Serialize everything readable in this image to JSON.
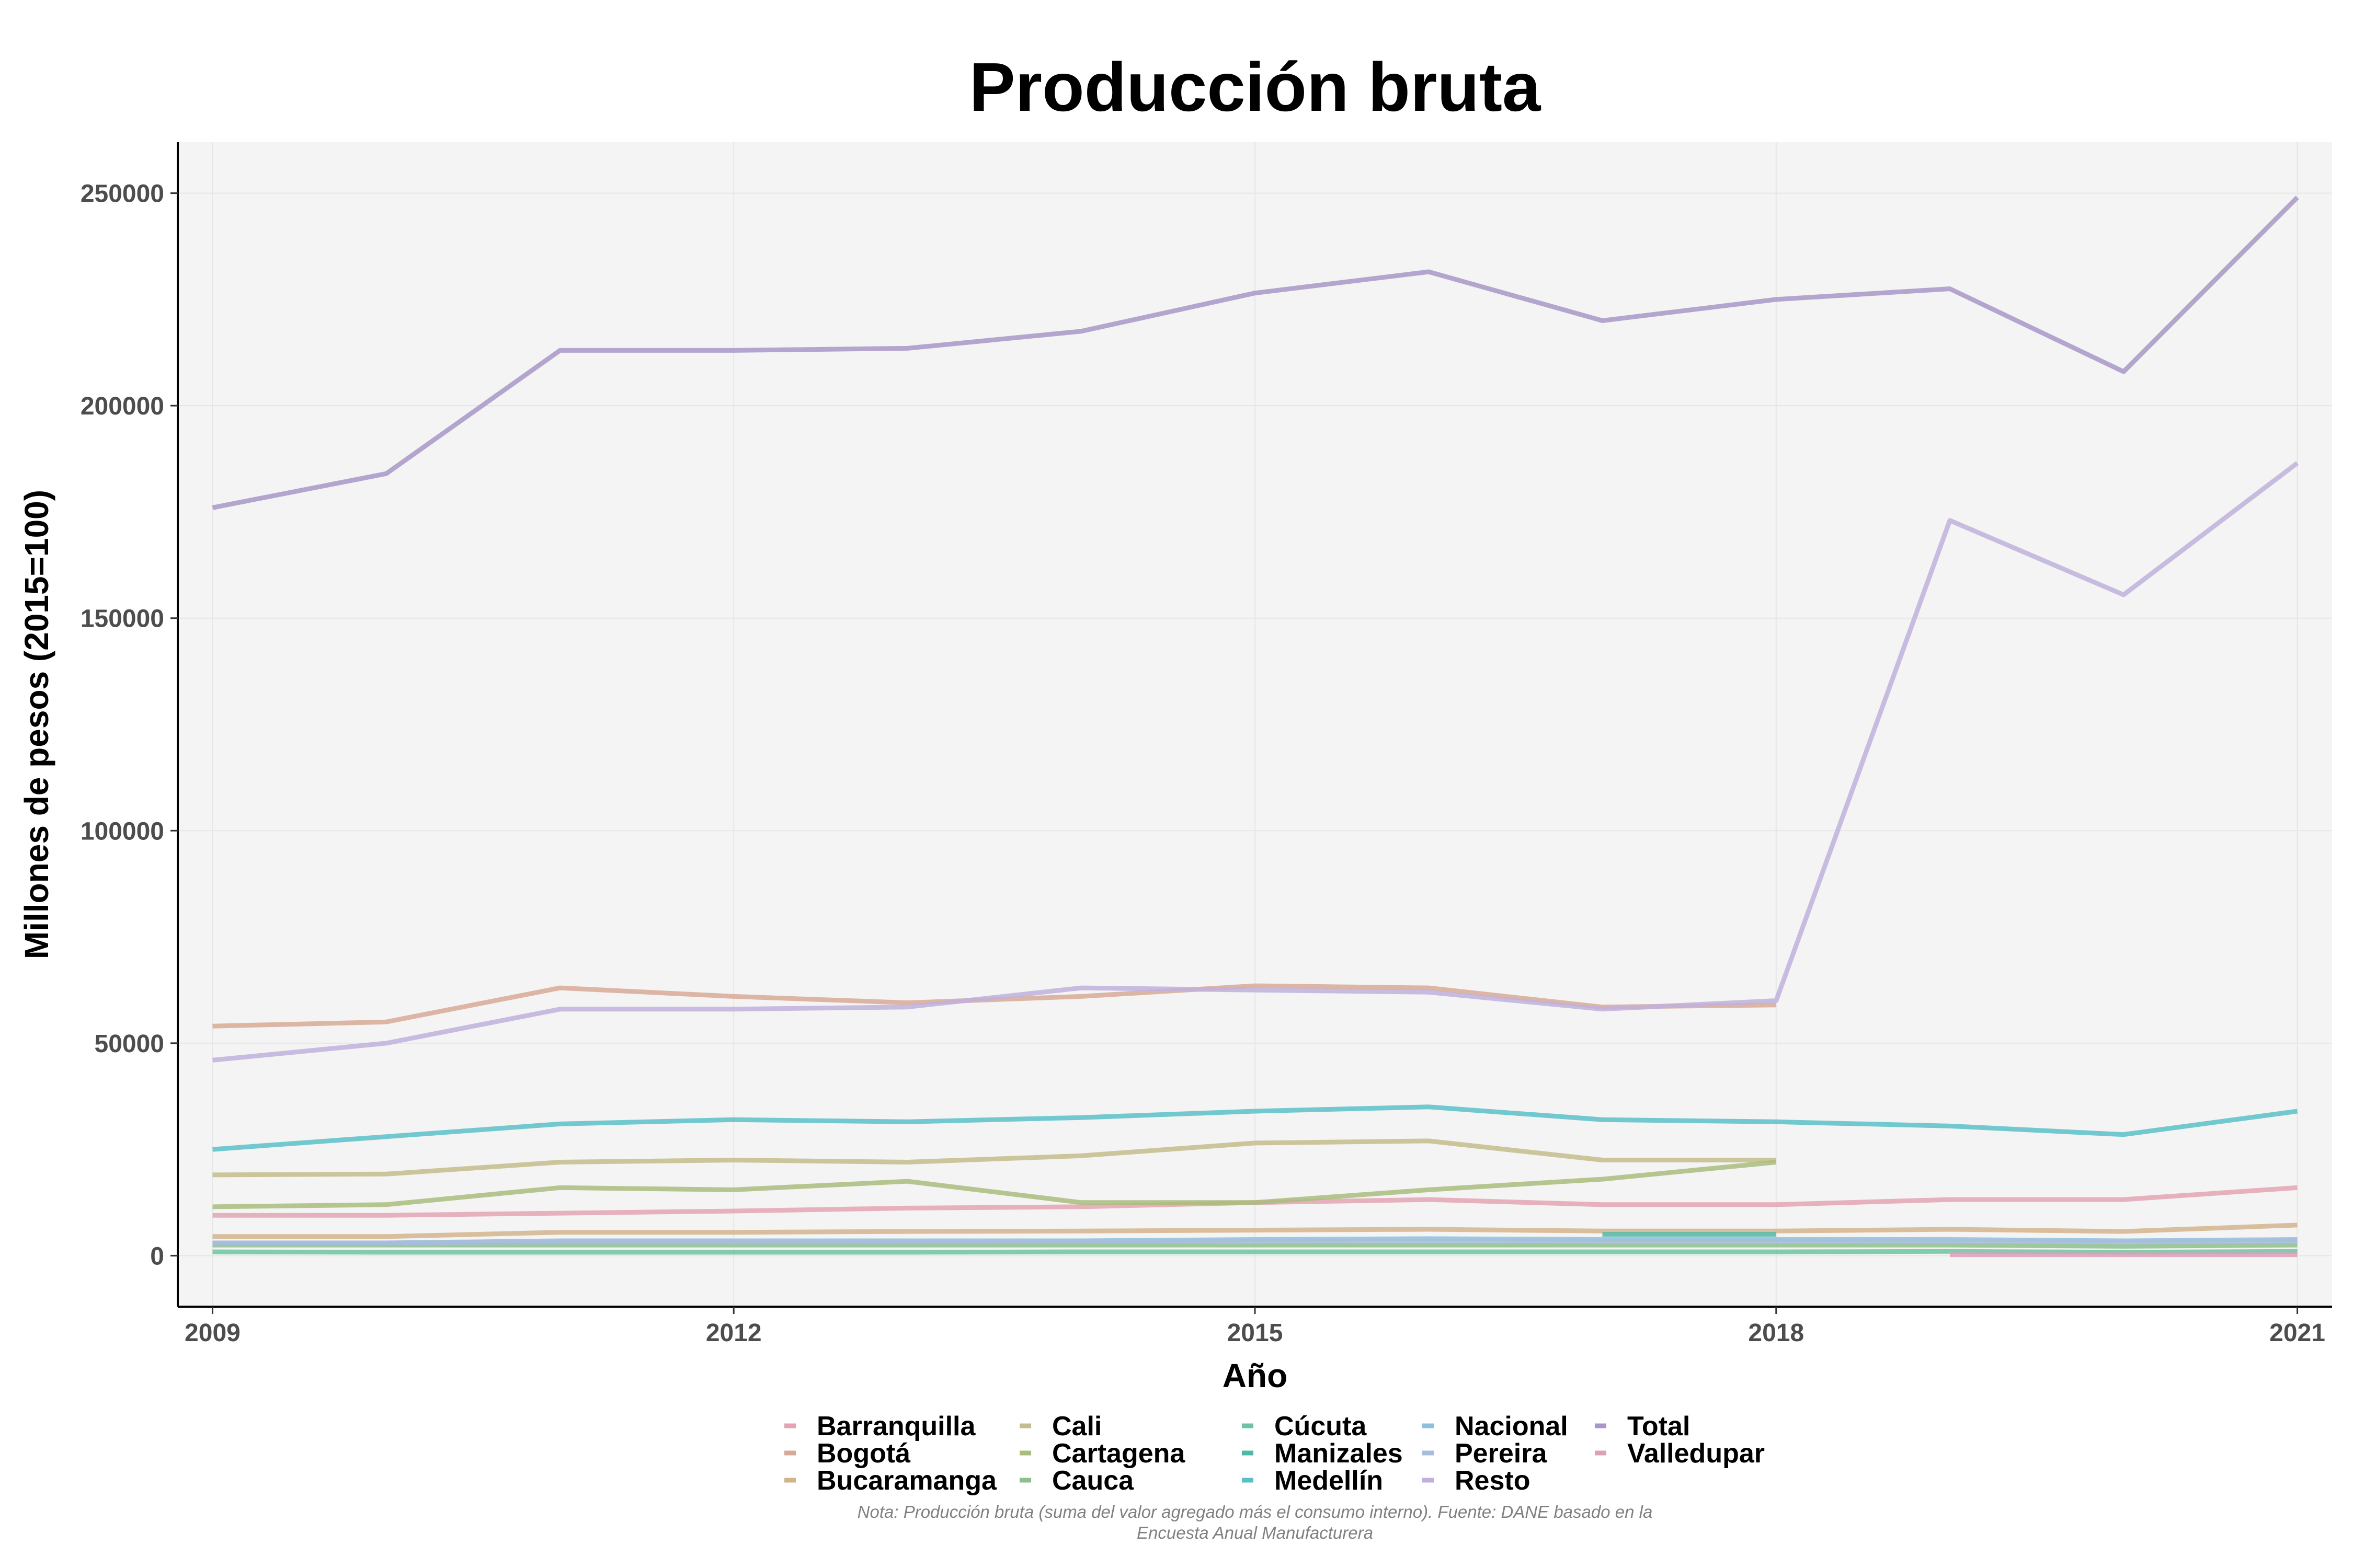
{
  "chart_data": {
    "type": "line",
    "title": "Producción bruta",
    "xlabel": "Año",
    "ylabel": "Millones de pesos (2015=100)",
    "xlim": [
      2008.8,
      2021.2
    ],
    "ylim": [
      -12000,
      262000
    ],
    "x_ticks": [
      2009,
      2012,
      2015,
      2018,
      2021
    ],
    "y_ticks": [
      0,
      50000,
      100000,
      150000,
      200000,
      250000
    ],
    "grid": true,
    "legend_position": "bottom",
    "note_lines": [
      "Nota: Producción bruta (suma del valor agregado más el consumo interno). Fuente: DANE basado en la",
      "Encuesta Anual Manufacturera"
    ],
    "series": [
      {
        "name": "Barranquilla",
        "color": "#e3a3b3",
        "points": [
          [
            2009,
            9500
          ],
          [
            2010,
            9500
          ],
          [
            2011,
            10000
          ],
          [
            2012,
            10500
          ],
          [
            2013,
            11200
          ],
          [
            2014,
            11500
          ],
          [
            2015,
            12500
          ],
          [
            2016,
            13200
          ],
          [
            2017,
            12000
          ],
          [
            2018,
            12000
          ],
          [
            2019,
            13200
          ],
          [
            2020,
            13200
          ],
          [
            2021,
            16000
          ]
        ]
      },
      {
        "name": "Bogotá",
        "color": "#d8a996",
        "points": [
          [
            2009,
            54000
          ],
          [
            2010,
            55000
          ],
          [
            2011,
            63000
          ],
          [
            2012,
            61000
          ],
          [
            2013,
            59500
          ],
          [
            2014,
            61000
          ],
          [
            2015,
            63500
          ],
          [
            2016,
            63000
          ],
          [
            2017,
            58500
          ],
          [
            2018,
            59000
          ]
        ]
      },
      {
        "name": "Bucaramanga",
        "color": "#d2b48c",
        "points": [
          [
            2009,
            4500
          ],
          [
            2010,
            4500
          ],
          [
            2011,
            5500
          ],
          [
            2012,
            5500
          ],
          [
            2013,
            5700
          ],
          [
            2014,
            5800
          ],
          [
            2015,
            6000
          ],
          [
            2016,
            6200
          ],
          [
            2017,
            5800
          ],
          [
            2018,
            5800
          ],
          [
            2019,
            6200
          ],
          [
            2020,
            5700
          ],
          [
            2021,
            7200
          ]
        ]
      },
      {
        "name": "Cali",
        "color": "#c3bc8c",
        "points": [
          [
            2009,
            19000
          ],
          [
            2010,
            19200
          ],
          [
            2011,
            22000
          ],
          [
            2012,
            22500
          ],
          [
            2013,
            22000
          ],
          [
            2014,
            23500
          ],
          [
            2015,
            26500
          ],
          [
            2016,
            27000
          ],
          [
            2017,
            22500
          ],
          [
            2018,
            22500
          ]
        ]
      },
      {
        "name": "Cartagena",
        "color": "#a9bc7c",
        "points": [
          [
            2009,
            11500
          ],
          [
            2010,
            12000
          ],
          [
            2011,
            16000
          ],
          [
            2012,
            15500
          ],
          [
            2013,
            17500
          ],
          [
            2014,
            12500
          ],
          [
            2015,
            12500
          ],
          [
            2016,
            15500
          ],
          [
            2017,
            18000
          ],
          [
            2018,
            22000
          ]
        ]
      },
      {
        "name": "Cauca",
        "color": "#8cbf8c",
        "points": [
          [
            2009,
            2500
          ],
          [
            2010,
            2500
          ],
          [
            2011,
            2500
          ],
          [
            2012,
            2500
          ],
          [
            2013,
            2500
          ],
          [
            2014,
            2500
          ],
          [
            2015,
            2500
          ],
          [
            2016,
            2500
          ],
          [
            2017,
            2500
          ],
          [
            2018,
            2500
          ],
          [
            2019,
            2500
          ],
          [
            2020,
            2200
          ],
          [
            2021,
            2500
          ]
        ]
      },
      {
        "name": "Cúcuta",
        "color": "#6cc4a0",
        "points": [
          [
            2009,
            900
          ],
          [
            2010,
            800
          ],
          [
            2011,
            800
          ],
          [
            2012,
            800
          ],
          [
            2013,
            800
          ],
          [
            2014,
            900
          ],
          [
            2015,
            900
          ],
          [
            2016,
            900
          ],
          [
            2017,
            900
          ],
          [
            2018,
            900
          ],
          [
            2019,
            1000
          ],
          [
            2020,
            800
          ],
          [
            2021,
            1000
          ]
        ]
      },
      {
        "name": "Manizales",
        "color": "#4fb8a8",
        "points": [
          [
            2017,
            5000
          ],
          [
            2018,
            5000
          ]
        ]
      },
      {
        "name": "Medellín",
        "color": "#5bbfc8",
        "points": [
          [
            2009,
            25000
          ],
          [
            2010,
            28000
          ],
          [
            2011,
            31000
          ],
          [
            2012,
            32000
          ],
          [
            2013,
            31500
          ],
          [
            2014,
            32500
          ],
          [
            2015,
            34000
          ],
          [
            2016,
            35000
          ],
          [
            2017,
            32000
          ],
          [
            2018,
            31500
          ],
          [
            2019,
            30500
          ],
          [
            2020,
            28500
          ],
          [
            2021,
            34000
          ]
        ]
      },
      {
        "name": "Nacional",
        "color": "#8ec0dc",
        "points": [
          [
            2009,
            3000
          ],
          [
            2010,
            3000
          ],
          [
            2011,
            3500
          ],
          [
            2012,
            3500
          ],
          [
            2013,
            3500
          ],
          [
            2014,
            3500
          ],
          [
            2015,
            3800
          ],
          [
            2016,
            4000
          ],
          [
            2017,
            3800
          ],
          [
            2018,
            3800
          ],
          [
            2019,
            3800
          ],
          [
            2020,
            3500
          ],
          [
            2021,
            3800
          ]
        ]
      },
      {
        "name": "Pereira",
        "color": "#a8bcdc",
        "points": [
          [
            2009,
            3000
          ],
          [
            2010,
            3000
          ],
          [
            2011,
            3200
          ],
          [
            2012,
            3200
          ],
          [
            2013,
            3200
          ],
          [
            2014,
            3300
          ],
          [
            2015,
            3300
          ],
          [
            2016,
            3400
          ],
          [
            2017,
            3300
          ],
          [
            2018,
            3300
          ],
          [
            2019,
            3400
          ],
          [
            2020,
            3200
          ],
          [
            2021,
            3500
          ]
        ]
      },
      {
        "name": "Resto",
        "color": "#c0b0dc",
        "points": [
          [
            2009,
            46000
          ],
          [
            2010,
            50000
          ],
          [
            2011,
            58000
          ],
          [
            2012,
            58000
          ],
          [
            2013,
            58500
          ],
          [
            2014,
            63000
          ],
          [
            2015,
            62500
          ],
          [
            2016,
            62000
          ],
          [
            2017,
            58000
          ],
          [
            2018,
            60000
          ],
          [
            2019,
            173000
          ],
          [
            2020,
            155500
          ],
          [
            2021,
            186500
          ]
        ]
      },
      {
        "name": "Total",
        "color": "#a896c8",
        "points": [
          [
            2009,
            176000
          ],
          [
            2010,
            184000
          ],
          [
            2011,
            213000
          ],
          [
            2012,
            213000
          ],
          [
            2013,
            213500
          ],
          [
            2014,
            217500
          ],
          [
            2015,
            226500
          ],
          [
            2016,
            231500
          ],
          [
            2017,
            220000
          ],
          [
            2018,
            225000
          ],
          [
            2019,
            227500
          ],
          [
            2020,
            208000
          ],
          [
            2021,
            249000
          ]
        ]
      },
      {
        "name": "Valledupar",
        "color": "#dca0b8",
        "points": [
          [
            2019,
            200
          ],
          [
            2020,
            200
          ],
          [
            2021,
            200
          ]
        ]
      }
    ]
  }
}
